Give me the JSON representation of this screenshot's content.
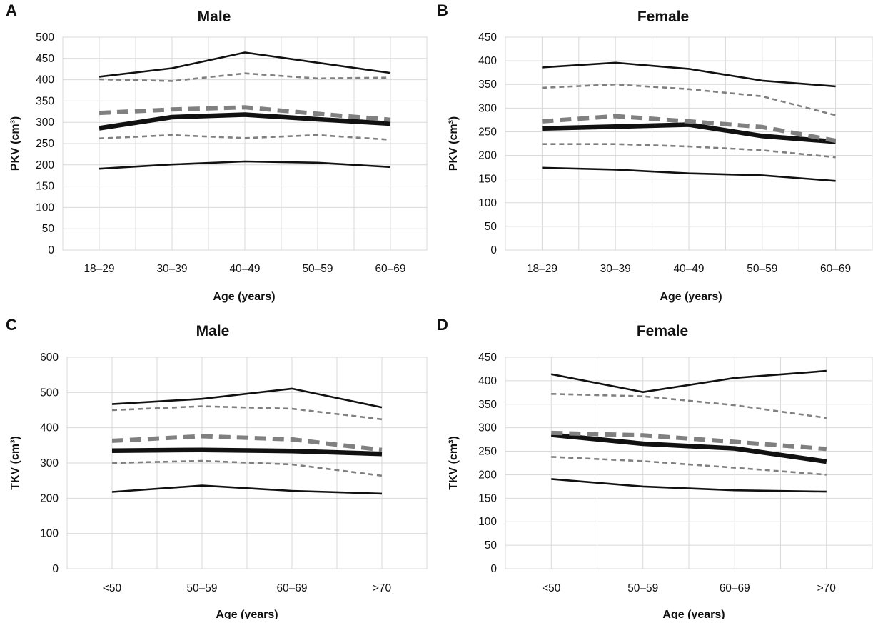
{
  "chart_data": [
    {
      "type": "line",
      "panel_letter": "A",
      "title": "Male",
      "xlabel": "Age (years)",
      "ylabel": "PKV (cm³)",
      "categories": [
        "18–29",
        "30–39",
        "40–49",
        "50–59",
        "60–69"
      ],
      "ylim": [
        0,
        500
      ],
      "yticks": [
        0,
        50,
        100,
        150,
        200,
        250,
        300,
        350,
        400,
        450,
        500
      ],
      "grid": true,
      "series": [
        {
          "style": "solid-thin-black",
          "values": [
            191,
            201,
            208,
            205,
            195
          ]
        },
        {
          "style": "dashed-thin-gray",
          "values": [
            262,
            270,
            263,
            270,
            259
          ]
        },
        {
          "style": "solid-thick-black",
          "values": [
            286,
            312,
            318,
            307,
            297
          ]
        },
        {
          "style": "dashed-thick-gray",
          "values": [
            322,
            330,
            335,
            320,
            306
          ]
        },
        {
          "style": "dashed-thin-gray",
          "values": [
            401,
            397,
            415,
            403,
            405
          ]
        },
        {
          "style": "solid-thin-black",
          "values": [
            407,
            427,
            464,
            440,
            416
          ]
        }
      ]
    },
    {
      "type": "line",
      "panel_letter": "B",
      "title": "Female",
      "xlabel": "Age (years)",
      "ylabel": "PKV (cm³)",
      "categories": [
        "18–29",
        "30–39",
        "40–49",
        "50–59",
        "60–69"
      ],
      "ylim": [
        0,
        450
      ],
      "yticks": [
        0,
        50,
        100,
        150,
        200,
        250,
        300,
        350,
        400,
        450
      ],
      "grid": true,
      "series": [
        {
          "style": "solid-thin-black",
          "values": [
            174,
            170,
            162,
            158,
            146
          ]
        },
        {
          "style": "dashed-thin-gray",
          "values": [
            224,
            224,
            219,
            211,
            196
          ]
        },
        {
          "style": "solid-thick-black",
          "values": [
            257,
            261,
            265,
            241,
            229
          ]
        },
        {
          "style": "dashed-thick-gray",
          "values": [
            272,
            283,
            272,
            260,
            231
          ]
        },
        {
          "style": "dashed-thin-gray",
          "values": [
            343,
            350,
            340,
            325,
            285
          ]
        },
        {
          "style": "solid-thin-black",
          "values": [
            386,
            396,
            383,
            358,
            346
          ]
        }
      ]
    },
    {
      "type": "line",
      "panel_letter": "C",
      "title": "Male",
      "xlabel": "Age (years)",
      "ylabel": "TKV (cm³)",
      "categories": [
        "<50",
        "50–59",
        "60–69",
        ">70"
      ],
      "ylim": [
        0,
        600
      ],
      "yticks": [
        0,
        100,
        200,
        300,
        400,
        500,
        600
      ],
      "grid": true,
      "series": [
        {
          "style": "solid-thin-black",
          "values": [
            218,
            236,
            221,
            213
          ]
        },
        {
          "style": "dashed-thin-gray",
          "values": [
            300,
            306,
            296,
            264
          ]
        },
        {
          "style": "solid-thick-black",
          "values": [
            335,
            337,
            334,
            326
          ]
        },
        {
          "style": "dashed-thick-gray",
          "values": [
            363,
            376,
            367,
            337
          ]
        },
        {
          "style": "dashed-thin-gray",
          "values": [
            450,
            461,
            454,
            424
          ]
        },
        {
          "style": "solid-thin-black",
          "values": [
            467,
            482,
            511,
            458
          ]
        }
      ]
    },
    {
      "type": "line",
      "panel_letter": "D",
      "title": "Female",
      "xlabel": "Age (years)",
      "ylabel": "TKV (cm³)",
      "categories": [
        "<50",
        "50–59",
        "60–69",
        ">70"
      ],
      "ylim": [
        0,
        450
      ],
      "yticks": [
        0,
        50,
        100,
        150,
        200,
        250,
        300,
        350,
        400,
        450
      ],
      "grid": true,
      "series": [
        {
          "style": "solid-thin-black",
          "values": [
            191,
            175,
            167,
            164
          ]
        },
        {
          "style": "dashed-thin-gray",
          "values": [
            238,
            229,
            215,
            200
          ]
        },
        {
          "style": "solid-thick-black",
          "values": [
            285,
            266,
            256,
            228
          ]
        },
        {
          "style": "dashed-thick-gray",
          "values": [
            289,
            284,
            270,
            255
          ]
        },
        {
          "style": "dashed-thin-gray",
          "values": [
            372,
            367,
            348,
            321
          ]
        },
        {
          "style": "solid-thin-black",
          "values": [
            414,
            376,
            406,
            421
          ]
        }
      ]
    }
  ],
  "colors": {
    "black_line": "#111111",
    "gray_line": "#808080",
    "grid": "#d9d9d9",
    "plot_border": "#bfbfbf"
  }
}
